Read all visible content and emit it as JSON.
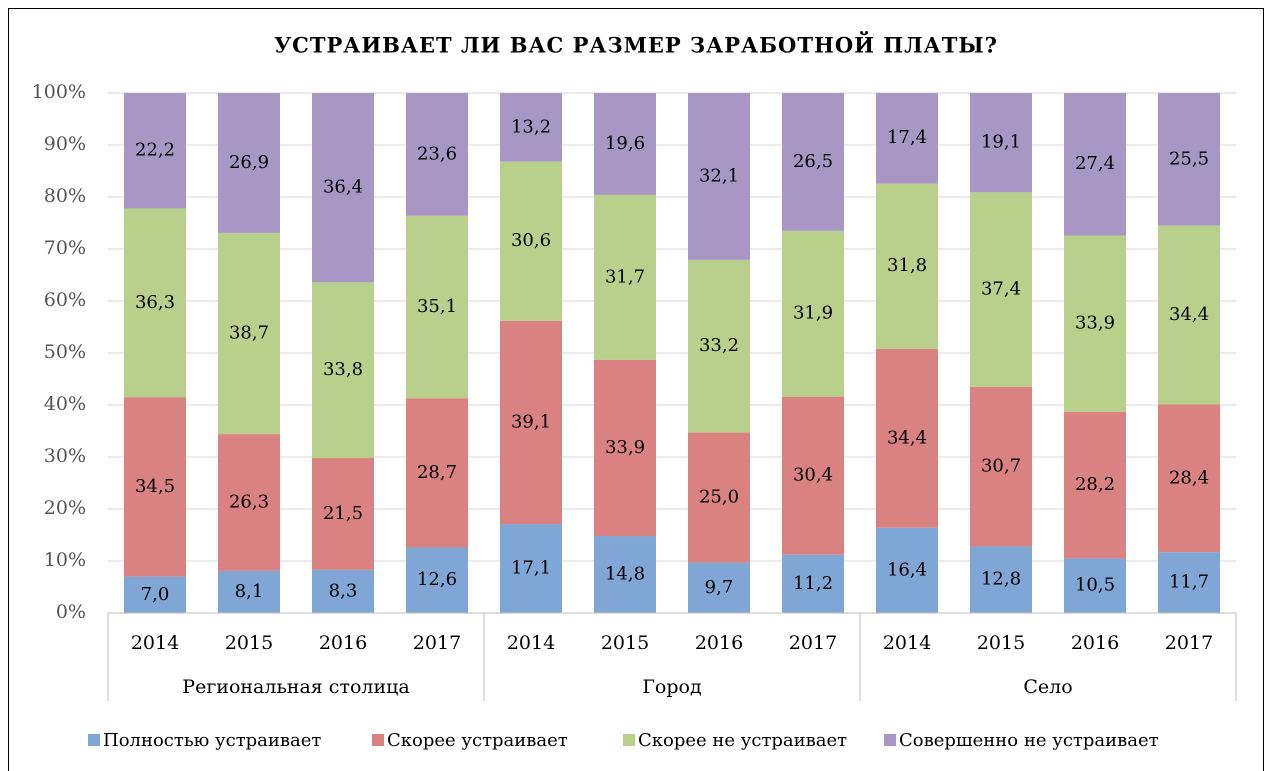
{
  "chart_data": {
    "type": "stacked_bar",
    "title": "УСТРАИВАЕТ ЛИ ВАС РАЗМЕР ЗАРАБОТНОЙ ПЛАТЫ?",
    "groups": [
      {
        "name": "Региональная столица",
        "categories": [
          "2014",
          "2015",
          "2016",
          "2017"
        ]
      },
      {
        "name": "Город",
        "categories": [
          "2014",
          "2015",
          "2016",
          "2017"
        ]
      },
      {
        "name": "Село",
        "categories": [
          "2014",
          "2015",
          "2016",
          "2017"
        ]
      }
    ],
    "series": [
      {
        "name": "Полностью устраивает",
        "color": "#7fa6d4",
        "values": [
          7.0,
          8.1,
          8.3,
          12.6,
          17.1,
          14.8,
          9.7,
          11.2,
          16.4,
          12.8,
          10.5,
          11.7
        ],
        "value_labels": [
          "7,0",
          "8,1",
          "8,3",
          "12,6",
          "17,1",
          "14,8",
          "9,7",
          "11,2",
          "16,4",
          "12,8",
          "10,5",
          "11,7"
        ]
      },
      {
        "name": "Скорее устраивает",
        "color": "#d98281",
        "values": [
          34.5,
          26.3,
          21.5,
          28.7,
          39.1,
          33.9,
          25.0,
          30.4,
          34.4,
          30.7,
          28.2,
          28.4
        ],
        "value_labels": [
          "34,5",
          "26,3",
          "21,5",
          "28,7",
          "39,1",
          "33,9",
          "25,0",
          "30,4",
          "34,4",
          "30,7",
          "28,2",
          "28,4"
        ]
      },
      {
        "name": "Скорее не устраивает",
        "color": "#b8d08c",
        "values": [
          36.3,
          38.7,
          33.8,
          35.1,
          30.6,
          31.7,
          33.2,
          31.9,
          31.8,
          37.4,
          33.9,
          34.4
        ],
        "value_labels": [
          "36,3",
          "38,7",
          "33,8",
          "35,1",
          "30,6",
          "31,7",
          "33,2",
          "31,9",
          "31,8",
          "37,4",
          "33,9",
          "34,4"
        ]
      },
      {
        "name": "Совершенно не устраивает",
        "color": "#a897c5",
        "values": [
          22.2,
          26.9,
          36.4,
          23.6,
          13.2,
          19.6,
          32.1,
          26.5,
          17.4,
          19.1,
          27.4,
          25.5
        ],
        "value_labels": [
          "22,2",
          "26,9",
          "36,4",
          "23,6",
          "13,2",
          "19,6",
          "32,1",
          "26,5",
          "17,4",
          "19,1",
          "27,4",
          "25,5"
        ]
      }
    ],
    "ylim": [
      0,
      100
    ],
    "yticks": [
      {
        "value": 0,
        "label": "0%"
      },
      {
        "value": 10,
        "label": "10%"
      },
      {
        "value": 20,
        "label": "20%"
      },
      {
        "value": 30,
        "label": "30%"
      },
      {
        "value": 40,
        "label": "40%"
      },
      {
        "value": 50,
        "label": "50%"
      },
      {
        "value": 60,
        "label": "60%"
      },
      {
        "value": 70,
        "label": "70%"
      },
      {
        "value": 80,
        "label": "80%"
      },
      {
        "value": 90,
        "label": "90%"
      },
      {
        "value": 100,
        "label": "100%"
      }
    ],
    "grid": true,
    "legend": "bottom"
  }
}
